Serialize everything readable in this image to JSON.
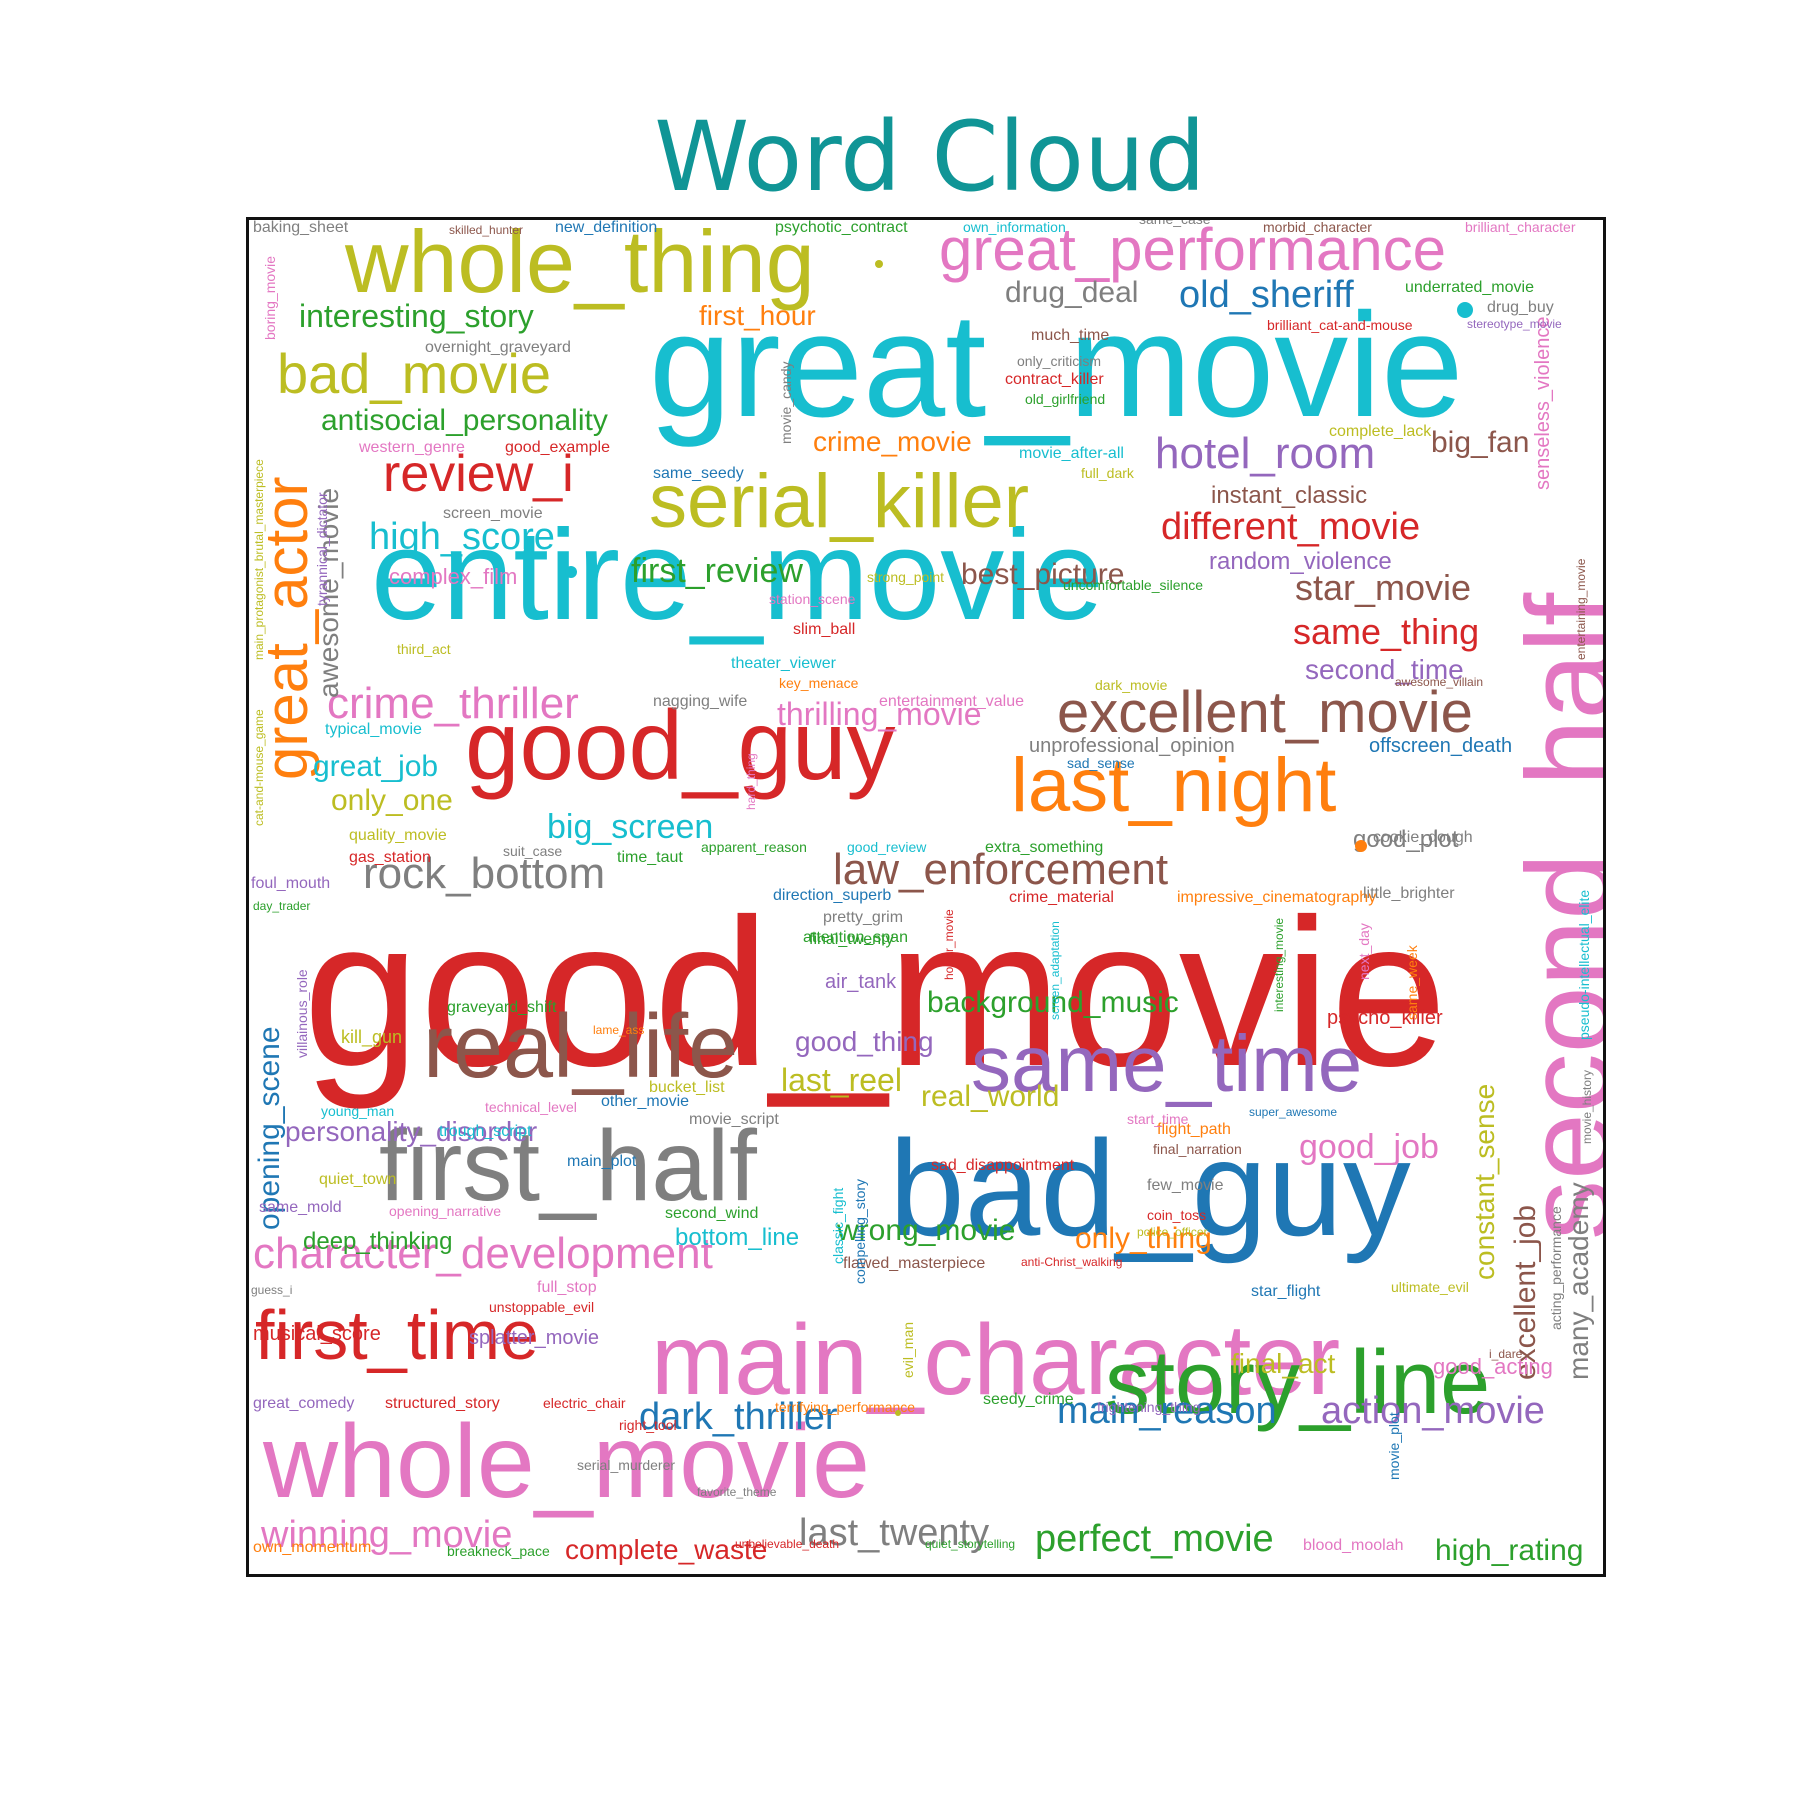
{
  "title": "Word Cloud",
  "colors": {
    "title": "#109596",
    "blue": "#1f77b4",
    "orange": "#ff7f0e",
    "green": "#2ca02c",
    "red": "#d62728",
    "purple": "#9467bd",
    "brown": "#8c564b",
    "pink": "#e377c2",
    "gray": "#7f7f7f",
    "olive": "#bcbd22",
    "cyan": "#17becf"
  },
  "words": [
    {
      "text": "good_movie"
    },
    {
      "text": "great_movie"
    },
    {
      "text": "entire_movie"
    },
    {
      "text": "bad_guy"
    },
    {
      "text": "whole_movie"
    },
    {
      "text": "main_character"
    },
    {
      "text": "second_half"
    },
    {
      "text": "whole_thing"
    },
    {
      "text": "good_guy"
    },
    {
      "text": "serial_killer"
    },
    {
      "text": "first_half"
    },
    {
      "text": "real_life"
    },
    {
      "text": "story_line"
    },
    {
      "text": "same_time"
    },
    {
      "text": "last_night"
    },
    {
      "text": "great_performance"
    },
    {
      "text": "great_actor"
    },
    {
      "text": "first_time"
    },
    {
      "text": "excellent_movie"
    },
    {
      "text": "bad_movie"
    },
    {
      "text": "review_i"
    },
    {
      "text": "character_development"
    },
    {
      "text": "crime_thriller"
    },
    {
      "text": "rock_bottom"
    },
    {
      "text": "law_enforcement"
    },
    {
      "text": "old_sheriff"
    },
    {
      "text": "hotel_room"
    },
    {
      "text": "different_movie"
    },
    {
      "text": "high_score"
    },
    {
      "text": "interesting_story"
    },
    {
      "text": "antisocial_personality"
    },
    {
      "text": "first_review"
    },
    {
      "text": "star_movie"
    },
    {
      "text": "same_thing"
    },
    {
      "text": "dark_thriller"
    },
    {
      "text": "main_reason"
    },
    {
      "text": "action_movie"
    },
    {
      "text": "winning_movie"
    },
    {
      "text": "perfect_movie"
    },
    {
      "text": "last_twenty"
    },
    {
      "text": "complete_waste"
    },
    {
      "text": "high_rating"
    },
    {
      "text": "opening_scene"
    },
    {
      "text": "excellent_job"
    },
    {
      "text": "constant_sense"
    },
    {
      "text": "many_academy"
    },
    {
      "text": "good_job"
    },
    {
      "text": "big_screen"
    },
    {
      "text": "background_music"
    },
    {
      "text": "best_picture"
    },
    {
      "text": "drug_deal"
    },
    {
      "text": "personality_disorder"
    },
    {
      "text": "thrilling_movie"
    },
    {
      "text": "awesome_movie"
    },
    {
      "text": "first_hour"
    },
    {
      "text": "crime_movie"
    },
    {
      "text": "big_fan"
    },
    {
      "text": "instant_classic"
    },
    {
      "text": "random_violence"
    },
    {
      "text": "second_time"
    },
    {
      "text": "great_job"
    },
    {
      "text": "only_one"
    },
    {
      "text": "good_thing"
    },
    {
      "text": "last_reel"
    },
    {
      "text": "real_world"
    },
    {
      "text": "wrong_movie"
    },
    {
      "text": "only_thing"
    },
    {
      "text": "deep_thinking"
    },
    {
      "text": "bottom_line"
    },
    {
      "text": "final_act"
    },
    {
      "text": "good_plot"
    },
    {
      "text": "good_acting"
    },
    {
      "text": "splatter_movie"
    },
    {
      "text": "musical_score"
    },
    {
      "text": "senseless_violence"
    },
    {
      "text": "complex_film"
    },
    {
      "text": "unprofessional_opinion"
    },
    {
      "text": "offscreen_death"
    },
    {
      "text": "psycho_killer"
    },
    {
      "text": "air_tank"
    },
    {
      "text": "kill_gun"
    },
    {
      "text": "graveyard_shift"
    },
    {
      "text": "attention_span"
    },
    {
      "text": "direction_superb"
    },
    {
      "text": "theater_viewer"
    },
    {
      "text": "slim_ball"
    },
    {
      "text": "extra_something"
    },
    {
      "text": "time_taut"
    },
    {
      "text": "apparent_reason"
    },
    {
      "text": "good_review"
    },
    {
      "text": "impressive_cinematography"
    },
    {
      "text": "crime_material"
    },
    {
      "text": "pretty_grim"
    },
    {
      "text": "final_twenty"
    },
    {
      "text": "baking_sheet"
    },
    {
      "text": "skilled_hunter"
    },
    {
      "text": "new_definition"
    },
    {
      "text": "psychotic_contract"
    },
    {
      "text": "own_information"
    },
    {
      "text": "same_case"
    },
    {
      "text": "morbid_character"
    },
    {
      "text": "brilliant_character"
    },
    {
      "text": "underrated_movie"
    },
    {
      "text": "drug_buy"
    },
    {
      "text": "brilliant_cat-and-mouse"
    },
    {
      "text": "stereotype_movie"
    },
    {
      "text": "much_time"
    },
    {
      "text": "only_criticism"
    },
    {
      "text": "contract_killer"
    },
    {
      "text": "old_girlfriend"
    },
    {
      "text": "overnight_graveyard"
    },
    {
      "text": "complete_lack"
    },
    {
      "text": "movie_after-all"
    },
    {
      "text": "full_dark"
    },
    {
      "text": "western_genre"
    },
    {
      "text": "good_example"
    },
    {
      "text": "same_seedy"
    },
    {
      "text": "screen_movie"
    },
    {
      "text": "strong_point"
    },
    {
      "text": "uncomfortable_silence"
    },
    {
      "text": "station_scene"
    },
    {
      "text": "third_act"
    },
    {
      "text": "key_menace"
    },
    {
      "text": "nagging_wife"
    },
    {
      "text": "entertainment_value"
    },
    {
      "text": "dark_movie"
    },
    {
      "text": "typical_movie"
    },
    {
      "text": "sad_sense"
    },
    {
      "text": "quality_movie"
    },
    {
      "text": "gas_station"
    },
    {
      "text": "suit_case"
    },
    {
      "text": "cookie_dough"
    },
    {
      "text": "little_brighter"
    },
    {
      "text": "foul_mouth"
    },
    {
      "text": "day_trader"
    },
    {
      "text": "lame_ass"
    },
    {
      "text": "bucket_list"
    },
    {
      "text": "technical_level"
    },
    {
      "text": "other_movie"
    },
    {
      "text": "young_man"
    },
    {
      "text": "trough_script"
    },
    {
      "text": "movie_script"
    },
    {
      "text": "main_plot"
    },
    {
      "text": "quiet_town"
    },
    {
      "text": "same_mold"
    },
    {
      "text": "opening_narrative"
    },
    {
      "text": "second_wind"
    },
    {
      "text": "flight_path"
    },
    {
      "text": "final_narration"
    },
    {
      "text": "few_movie"
    },
    {
      "text": "coin_toss"
    },
    {
      "text": "police_officer"
    },
    {
      "text": "sad_disappointment"
    },
    {
      "text": "start_time"
    },
    {
      "text": "super_awesome"
    },
    {
      "text": "flawed_masterpiece"
    },
    {
      "text": "anti-Christ_walking"
    },
    {
      "text": "full_stop"
    },
    {
      "text": "unstoppable_evil"
    },
    {
      "text": "star_flight"
    },
    {
      "text": "ultimate_evil"
    },
    {
      "text": "guess_i"
    },
    {
      "text": "i_dare"
    },
    {
      "text": "acting_performance"
    },
    {
      "text": "great_comedy"
    },
    {
      "text": "structured_story"
    },
    {
      "text": "electric_chair"
    },
    {
      "text": "right_tool"
    },
    {
      "text": "terrifying_performance"
    },
    {
      "text": "seedy_crime"
    },
    {
      "text": "frightening_thing"
    },
    {
      "text": "serial_murderer"
    },
    {
      "text": "favorite_theme"
    },
    {
      "text": "unbelievable_death"
    },
    {
      "text": "quiet_storytelling"
    },
    {
      "text": "blood_moolah"
    },
    {
      "text": "own_momentum"
    },
    {
      "text": "breakneck_pace"
    },
    {
      "text": "boring_movie"
    },
    {
      "text": "main_protagonist_brutal_masterpiece"
    },
    {
      "text": "tyrannical_dictator"
    },
    {
      "text": "cat-and-mouse_game"
    },
    {
      "text": "villainous_role"
    },
    {
      "text": "movie_candy"
    },
    {
      "text": "hard_thing"
    },
    {
      "text": "horror_movie"
    },
    {
      "text": "screen_adaptation"
    },
    {
      "text": "interesting_movie"
    },
    {
      "text": "next_day"
    },
    {
      "text": "same_week"
    },
    {
      "text": "classic_fight"
    },
    {
      "text": "compelling_story"
    },
    {
      "text": "evil_man"
    },
    {
      "text": "movie_plot"
    },
    {
      "text": "awesome_villain"
    },
    {
      "text": "entertaining_movie"
    },
    {
      "text": "pseudo-intellectual_elite"
    },
    {
      "text": "movie_history"
    }
  ]
}
